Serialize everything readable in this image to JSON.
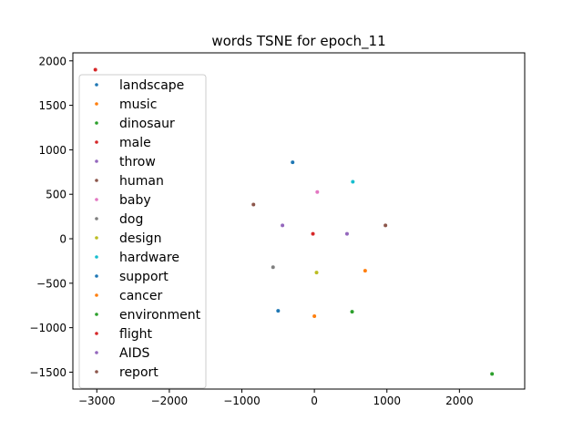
{
  "chart_data": {
    "type": "scatter",
    "title": "words TSNE for epoch_11",
    "xlabel": "",
    "ylabel": "",
    "xlim": [
      -3330,
      2900
    ],
    "ylim": [
      -1690,
      2090
    ],
    "xticks": [
      -3000,
      -2000,
      -1000,
      0,
      1000,
      2000
    ],
    "yticks": [
      -1500,
      -1000,
      -500,
      0,
      500,
      1000,
      1500,
      2000
    ],
    "xtick_labels": [
      "−3000",
      "−2000",
      "−1000",
      "0",
      "1000",
      "2000"
    ],
    "ytick_labels": [
      "−1500",
      "−1000",
      "−500",
      "0",
      "500",
      "1000",
      "1500",
      "2000"
    ],
    "grid": false,
    "legend_position": "upper-left",
    "series": [
      {
        "name": "landscape",
        "color": "#1f77b4",
        "x": -300,
        "y": 860
      },
      {
        "name": "music",
        "color": "#ff7f0e",
        "x": 700,
        "y": -360
      },
      {
        "name": "dinosaur",
        "color": "#2ca02c",
        "x": 2450,
        "y": -1520
      },
      {
        "name": "male",
        "color": "#d62728",
        "x": -20,
        "y": 55
      },
      {
        "name": "throw",
        "color": "#9467bd",
        "x": 450,
        "y": 55
      },
      {
        "name": "human",
        "color": "#8c564b",
        "x": -840,
        "y": 385
      },
      {
        "name": "baby",
        "color": "#e377c2",
        "x": 40,
        "y": 525
      },
      {
        "name": "dog",
        "color": "#7f7f7f",
        "x": -570,
        "y": -320
      },
      {
        "name": "design",
        "color": "#bcbd22",
        "x": 30,
        "y": -380
      },
      {
        "name": "hardware",
        "color": "#17becf",
        "x": 530,
        "y": 640
      },
      {
        "name": "support",
        "color": "#1f77b4",
        "x": -500,
        "y": -810
      },
      {
        "name": "cancer",
        "color": "#ff7f0e",
        "x": 0,
        "y": -870
      },
      {
        "name": "environment",
        "color": "#2ca02c",
        "x": 520,
        "y": -820
      },
      {
        "name": "flight",
        "color": "#d62728",
        "x": -3020,
        "y": 1900
      },
      {
        "name": "AIDS",
        "color": "#9467bd",
        "x": -440,
        "y": 150
      },
      {
        "name": "report",
        "color": "#8c564b",
        "x": 980,
        "y": 150
      }
    ]
  }
}
